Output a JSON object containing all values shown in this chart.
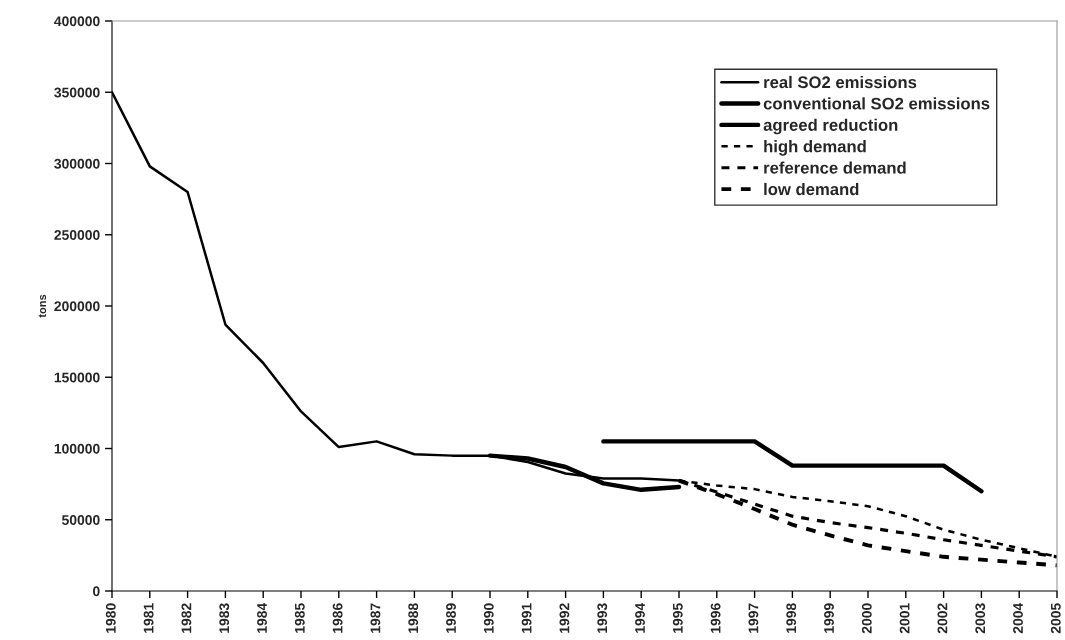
{
  "chart_data": {
    "type": "line",
    "ylabel": "tons",
    "categories": [
      "1980",
      "1981",
      "1982",
      "1983",
      "1984",
      "1985",
      "1986",
      "1987",
      "1988",
      "1989",
      "1990",
      "1991",
      "1992",
      "1993",
      "1994",
      "1995",
      "1996",
      "1997",
      "1998",
      "1999",
      "2000",
      "2001",
      "2002",
      "2003",
      "2004",
      "2005"
    ],
    "series": [
      {
        "name": "real SO2 emissions",
        "color": "#000000",
        "line_style": "solid",
        "values": [
          350000,
          298000,
          280000,
          187000,
          160000,
          126000,
          101000,
          105000,
          96000,
          95000,
          95000,
          90500,
          82500,
          79000,
          79000,
          77500,
          null,
          null,
          null,
          null,
          null,
          null,
          null,
          null,
          null,
          null
        ]
      },
      {
        "name": "conventional SO2 emissions",
        "color": "#000000",
        "line_style": "solid",
        "values": [
          null,
          null,
          null,
          null,
          null,
          null,
          null,
          null,
          null,
          null,
          95000,
          93000,
          87000,
          75500,
          71000,
          73000,
          null,
          null,
          null,
          null,
          null,
          null,
          null,
          null,
          null,
          null
        ]
      },
      {
        "name": "agreed reduction",
        "color": "#000000",
        "line_style": "solid",
        "values": [
          null,
          null,
          null,
          null,
          null,
          null,
          null,
          null,
          null,
          null,
          null,
          null,
          null,
          105000,
          105000,
          105000,
          105000,
          105000,
          88000,
          88000,
          88000,
          88000,
          88000,
          70000,
          null,
          null
        ]
      },
      {
        "name": "high demand",
        "color": "#000000",
        "line_style": "dashed",
        "values": [
          null,
          null,
          null,
          null,
          null,
          null,
          null,
          null,
          null,
          null,
          null,
          null,
          null,
          null,
          null,
          77500,
          74000,
          71500,
          66000,
          63000,
          59500,
          52500,
          43000,
          36000,
          30000,
          24000
        ]
      },
      {
        "name": "reference demand",
        "color": "#000000",
        "line_style": "dashed",
        "values": [
          null,
          null,
          null,
          null,
          null,
          null,
          null,
          null,
          null,
          null,
          null,
          null,
          null,
          null,
          null,
          77500,
          69500,
          61000,
          52500,
          48000,
          44500,
          40500,
          36000,
          32000,
          28000,
          24000
        ]
      },
      {
        "name": "low demand",
        "color": "#000000",
        "line_style": "dashed",
        "values": [
          null,
          null,
          null,
          null,
          null,
          null,
          null,
          null,
          null,
          null,
          null,
          null,
          null,
          null,
          null,
          77500,
          68000,
          57500,
          46500,
          39000,
          32000,
          28000,
          24000,
          22000,
          20000,
          18000
        ]
      }
    ],
    "ylim": [
      0,
      400000
    ],
    "yticks": [
      0,
      50000,
      100000,
      150000,
      200000,
      250000,
      300000,
      350000,
      400000
    ],
    "grid": false,
    "legend": "top right",
    "marker": "none"
  }
}
